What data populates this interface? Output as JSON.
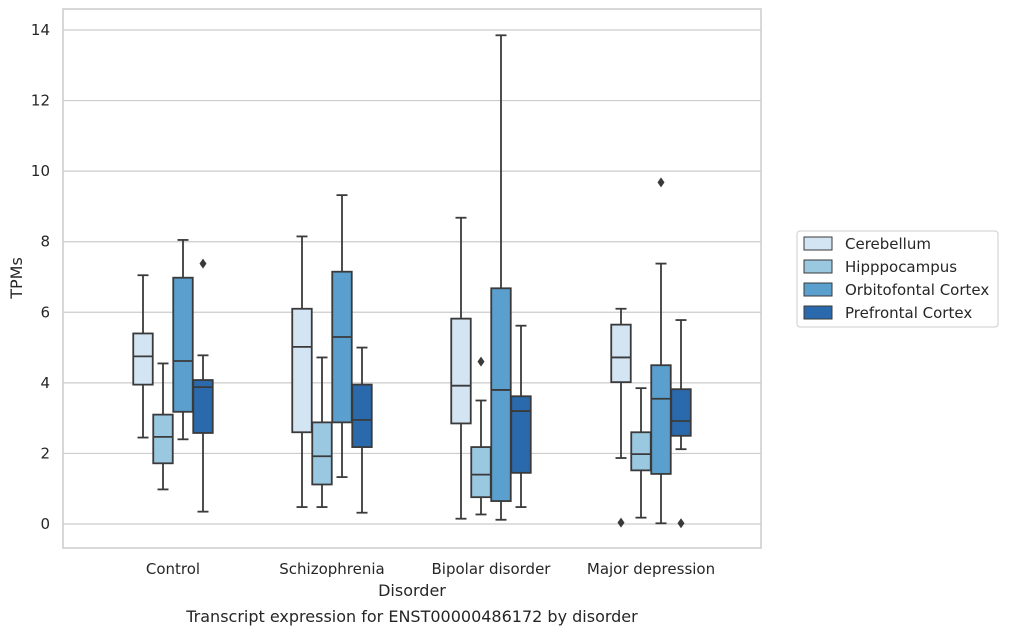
{
  "chart_data": {
    "type": "box",
    "xlabel": "Disorder",
    "ylabel": "TPMs",
    "caption": "Transcript expression for ENST00000486172 by disorder",
    "ylim": [
      -0.65,
      14.55
    ],
    "yticks": [
      0,
      2,
      4,
      6,
      8,
      10,
      12,
      14
    ],
    "grid": "horizontal",
    "legend_position": "right",
    "categories": [
      "Control",
      "Schizophrenia",
      "Bipolar disorder",
      "Major depression"
    ],
    "series": [
      {
        "name": "Cerebellum",
        "color": "#d3e4f3",
        "boxes": [
          {
            "whisker_low": 2.45,
            "q1": 3.95,
            "median": 4.75,
            "q3": 5.4,
            "whisker_high": 7.05,
            "outliers": []
          },
          {
            "whisker_low": 0.48,
            "q1": 2.6,
            "median": 5.02,
            "q3": 6.1,
            "whisker_high": 8.15,
            "outliers": []
          },
          {
            "whisker_low": 0.15,
            "q1": 2.85,
            "median": 3.92,
            "q3": 5.82,
            "whisker_high": 8.68,
            "outliers": []
          },
          {
            "whisker_low": 1.87,
            "q1": 4.02,
            "median": 4.72,
            "q3": 5.65,
            "whisker_high": 6.1,
            "outliers": [
              0.04
            ]
          }
        ]
      },
      {
        "name": "Hipppocampus",
        "color": "#9ac8e0",
        "boxes": [
          {
            "whisker_low": 0.98,
            "q1": 1.72,
            "median": 2.47,
            "q3": 3.1,
            "whisker_high": 4.55,
            "outliers": []
          },
          {
            "whisker_low": 0.48,
            "q1": 1.12,
            "median": 1.92,
            "q3": 2.88,
            "whisker_high": 4.72,
            "outliers": []
          },
          {
            "whisker_low": 0.27,
            "q1": 0.76,
            "median": 1.4,
            "q3": 2.18,
            "whisker_high": 3.5,
            "outliers": [
              4.6
            ]
          },
          {
            "whisker_low": 0.18,
            "q1": 1.52,
            "median": 1.98,
            "q3": 2.6,
            "whisker_high": 3.85,
            "outliers": []
          }
        ]
      },
      {
        "name": "Orbitofontal Cortex",
        "color": "#5a9fcd",
        "boxes": [
          {
            "whisker_low": 2.4,
            "q1": 3.18,
            "median": 4.62,
            "q3": 6.98,
            "whisker_high": 8.05,
            "outliers": []
          },
          {
            "whisker_low": 1.33,
            "q1": 2.88,
            "median": 5.3,
            "q3": 7.15,
            "whisker_high": 9.32,
            "outliers": []
          },
          {
            "whisker_low": 0.12,
            "q1": 0.65,
            "median": 3.8,
            "q3": 6.68,
            "whisker_high": 13.85,
            "outliers": []
          },
          {
            "whisker_low": 0.02,
            "q1": 1.42,
            "median": 3.55,
            "q3": 4.5,
            "whisker_high": 7.38,
            "outliers": [
              9.68
            ]
          }
        ]
      },
      {
        "name": "Prefrontal Cortex",
        "color": "#2a69ab",
        "boxes": [
          {
            "whisker_low": 0.35,
            "q1": 2.58,
            "median": 3.88,
            "q3": 4.08,
            "whisker_high": 4.78,
            "outliers": [
              7.38
            ]
          },
          {
            "whisker_low": 0.32,
            "q1": 2.18,
            "median": 2.95,
            "q3": 3.95,
            "whisker_high": 5.0,
            "outliers": []
          },
          {
            "whisker_low": 0.48,
            "q1": 1.45,
            "median": 3.2,
            "q3": 3.62,
            "whisker_high": 5.62,
            "outliers": []
          },
          {
            "whisker_low": 2.12,
            "q1": 2.5,
            "median": 2.92,
            "q3": 3.82,
            "whisker_high": 5.78,
            "outliers": [
              0.02
            ]
          }
        ]
      }
    ]
  }
}
